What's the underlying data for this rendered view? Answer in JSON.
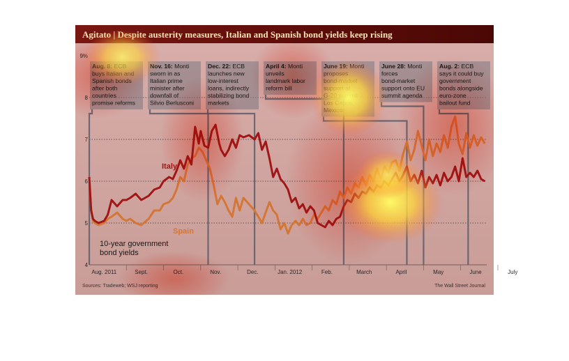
{
  "colors": {
    "italy": "#a11a1a",
    "spain": "#d4873d",
    "event_line": "#5a6a7a",
    "title_band": "#5b0a0a"
  },
  "chart_data": {
    "type": "line",
    "title": "Agitato | Despite austerity measures, Italian and Spanish bond yields keep rising",
    "xlabel": "",
    "ylabel": "",
    "y_unit": "%",
    "ylim": [
      4,
      9
    ],
    "y_ticks": [
      "9%",
      "8",
      "7",
      "6",
      "5",
      "4"
    ],
    "x_tick_labels": [
      "Aug. 2011",
      "Sept.",
      "Oct.",
      "Nov.",
      "Dec.",
      "Jan. 2012",
      "Feb.",
      "March",
      "April",
      "May",
      "June",
      "July"
    ],
    "grid": true,
    "legend_text": "10-year government bond yields",
    "source": "Sources: Tradeweb; WSJ reporting",
    "credit": "The Wall Street Journal",
    "series": [
      {
        "name": "Italy",
        "color": "#a11a1a",
        "points": [
          [
            0.0,
            6.1
          ],
          [
            0.05,
            5.3
          ],
          [
            0.1,
            5.1
          ],
          [
            0.15,
            5.05
          ],
          [
            0.25,
            5.0
          ],
          [
            0.4,
            5.05
          ],
          [
            0.5,
            5.2
          ],
          [
            0.6,
            5.55
          ],
          [
            0.75,
            5.4
          ],
          [
            0.9,
            5.55
          ],
          [
            1.0,
            5.55
          ],
          [
            1.1,
            5.6
          ],
          [
            1.25,
            5.7
          ],
          [
            1.4,
            5.55
          ],
          [
            1.6,
            5.65
          ],
          [
            1.75,
            5.8
          ],
          [
            1.9,
            5.85
          ],
          [
            2.0,
            6.0
          ],
          [
            2.15,
            6.1
          ],
          [
            2.25,
            6.05
          ],
          [
            2.35,
            6.25
          ],
          [
            2.45,
            6.5
          ],
          [
            2.55,
            6.3
          ],
          [
            2.65,
            6.6
          ],
          [
            2.75,
            6.4
          ],
          [
            2.85,
            7.3
          ],
          [
            2.95,
            6.9
          ],
          [
            3.0,
            7.2
          ],
          [
            3.1,
            6.85
          ],
          [
            3.2,
            6.8
          ],
          [
            3.3,
            7.2
          ],
          [
            3.4,
            7.35
          ],
          [
            3.5,
            6.9
          ],
          [
            3.55,
            6.75
          ],
          [
            3.65,
            6.6
          ],
          [
            3.75,
            6.75
          ],
          [
            3.85,
            7.0
          ],
          [
            3.95,
            6.8
          ],
          [
            4.05,
            7.1
          ],
          [
            4.15,
            7.05
          ],
          [
            4.3,
            7.1
          ],
          [
            4.45,
            7.0
          ],
          [
            4.55,
            7.15
          ],
          [
            4.65,
            6.75
          ],
          [
            4.75,
            6.95
          ],
          [
            4.85,
            6.55
          ],
          [
            4.95,
            6.1
          ],
          [
            5.05,
            6.3
          ],
          [
            5.15,
            6.05
          ],
          [
            5.25,
            5.95
          ],
          [
            5.35,
            5.8
          ],
          [
            5.45,
            5.5
          ],
          [
            5.55,
            5.6
          ],
          [
            5.65,
            5.35
          ],
          [
            5.75,
            5.45
          ],
          [
            5.85,
            5.25
          ],
          [
            5.95,
            5.4
          ],
          [
            6.05,
            5.3
          ],
          [
            6.15,
            5.0
          ],
          [
            6.25,
            4.95
          ],
          [
            6.35,
            4.9
          ],
          [
            6.45,
            5.05
          ],
          [
            6.55,
            4.95
          ],
          [
            6.65,
            5.1
          ],
          [
            6.75,
            5.15
          ],
          [
            6.85,
            5.4
          ],
          [
            6.95,
            5.55
          ],
          [
            7.05,
            5.5
          ],
          [
            7.15,
            5.7
          ],
          [
            7.25,
            5.6
          ],
          [
            7.35,
            5.75
          ],
          [
            7.45,
            5.7
          ],
          [
            7.55,
            5.85
          ],
          [
            7.65,
            5.75
          ],
          [
            7.75,
            5.9
          ],
          [
            7.85,
            5.85
          ],
          [
            7.95,
            6.0
          ],
          [
            8.05,
            5.9
          ],
          [
            8.15,
            6.05
          ],
          [
            8.25,
            6.2
          ],
          [
            8.35,
            6.0
          ],
          [
            8.45,
            6.15
          ],
          [
            8.55,
            6.35
          ],
          [
            8.65,
            6.0
          ],
          [
            8.75,
            6.15
          ],
          [
            8.85,
            5.95
          ],
          [
            8.95,
            6.25
          ],
          [
            9.05,
            5.85
          ],
          [
            9.15,
            6.1
          ],
          [
            9.25,
            5.95
          ],
          [
            9.35,
            6.15
          ],
          [
            9.45,
            5.9
          ],
          [
            9.55,
            6.2
          ],
          [
            9.65,
            6.0
          ],
          [
            9.75,
            6.1
          ],
          [
            9.85,
            6.35
          ],
          [
            9.95,
            6.0
          ],
          [
            10.05,
            6.55
          ],
          [
            10.15,
            6.1
          ],
          [
            10.25,
            6.2
          ],
          [
            10.35,
            6.1
          ],
          [
            10.45,
            6.25
          ],
          [
            10.55,
            6.05
          ],
          [
            10.65,
            6.0
          ]
        ]
      },
      {
        "name": "Spain",
        "color": "#d4873d",
        "points": [
          [
            0.0,
            6.1
          ],
          [
            0.05,
            5.35
          ],
          [
            0.1,
            5.05
          ],
          [
            0.15,
            5.0
          ],
          [
            0.25,
            4.95
          ],
          [
            0.4,
            5.0
          ],
          [
            0.5,
            5.1
          ],
          [
            0.6,
            5.15
          ],
          [
            0.75,
            5.25
          ],
          [
            0.9,
            5.1
          ],
          [
            1.0,
            5.05
          ],
          [
            1.1,
            5.1
          ],
          [
            1.25,
            5.0
          ],
          [
            1.4,
            4.95
          ],
          [
            1.6,
            5.1
          ],
          [
            1.75,
            5.3
          ],
          [
            1.9,
            5.3
          ],
          [
            2.0,
            5.45
          ],
          [
            2.15,
            5.5
          ],
          [
            2.25,
            5.6
          ],
          [
            2.35,
            5.8
          ],
          [
            2.45,
            6.1
          ],
          [
            2.55,
            6.0
          ],
          [
            2.65,
            6.4
          ],
          [
            2.75,
            6.55
          ],
          [
            2.85,
            6.6
          ],
          [
            2.95,
            6.8
          ],
          [
            3.05,
            6.7
          ],
          [
            3.15,
            6.5
          ],
          [
            3.25,
            6.3
          ],
          [
            3.35,
            5.9
          ],
          [
            3.45,
            5.45
          ],
          [
            3.55,
            5.65
          ],
          [
            3.65,
            5.5
          ],
          [
            3.75,
            5.3
          ],
          [
            3.85,
            5.15
          ],
          [
            3.95,
            5.6
          ],
          [
            4.05,
            5.3
          ],
          [
            4.15,
            5.6
          ],
          [
            4.3,
            5.45
          ],
          [
            4.45,
            5.3
          ],
          [
            4.55,
            5.15
          ],
          [
            4.65,
            5.0
          ],
          [
            4.75,
            5.25
          ],
          [
            4.85,
            5.5
          ],
          [
            4.95,
            5.3
          ],
          [
            5.05,
            5.2
          ],
          [
            5.15,
            4.85
          ],
          [
            5.25,
            5.0
          ],
          [
            5.35,
            4.75
          ],
          [
            5.45,
            4.95
          ],
          [
            5.55,
            5.05
          ],
          [
            5.65,
            4.95
          ],
          [
            5.75,
            5.1
          ],
          [
            5.85,
            4.95
          ],
          [
            5.95,
            5.0
          ],
          [
            6.05,
            5.2
          ],
          [
            6.15,
            5.1
          ],
          [
            6.25,
            5.25
          ],
          [
            6.35,
            5.4
          ],
          [
            6.45,
            5.3
          ],
          [
            6.55,
            5.55
          ],
          [
            6.65,
            5.45
          ],
          [
            6.75,
            5.75
          ],
          [
            6.85,
            5.6
          ],
          [
            6.95,
            5.85
          ],
          [
            7.05,
            5.7
          ],
          [
            7.15,
            5.95
          ],
          [
            7.25,
            5.85
          ],
          [
            7.35,
            6.1
          ],
          [
            7.45,
            5.9
          ],
          [
            7.55,
            6.15
          ],
          [
            7.65,
            6.0
          ],
          [
            7.75,
            6.3
          ],
          [
            7.85,
            6.05
          ],
          [
            7.95,
            6.35
          ],
          [
            8.05,
            6.2
          ],
          [
            8.15,
            6.45
          ],
          [
            8.25,
            6.5
          ],
          [
            8.35,
            6.25
          ],
          [
            8.45,
            6.65
          ],
          [
            8.55,
            6.95
          ],
          [
            8.65,
            6.5
          ],
          [
            8.75,
            6.75
          ],
          [
            8.85,
            7.2
          ],
          [
            8.95,
            6.85
          ],
          [
            9.05,
            6.5
          ],
          [
            9.15,
            7.0
          ],
          [
            9.25,
            6.6
          ],
          [
            9.35,
            6.9
          ],
          [
            9.45,
            6.7
          ],
          [
            9.55,
            7.1
          ],
          [
            9.65,
            6.8
          ],
          [
            9.75,
            7.3
          ],
          [
            9.85,
            7.55
          ],
          [
            9.95,
            6.9
          ],
          [
            10.05,
            6.65
          ],
          [
            10.15,
            7.15
          ],
          [
            10.25,
            6.8
          ],
          [
            10.35,
            7.1
          ],
          [
            10.45,
            6.85
          ],
          [
            10.55,
            7.05
          ],
          [
            10.65,
            6.9
          ]
        ]
      }
    ],
    "annotations": [
      {
        "date_label": "Aug. 8:",
        "x": 0.0,
        "lines": [
          "Aug. 8: ECB",
          "buys Italian and",
          "Spanish bonds",
          "after both",
          "countries",
          "promise reforms"
        ]
      },
      {
        "date_label": "Nov. 16:",
        "x": 3.2,
        "lines": [
          "Nov. 16: Monti",
          "sworn in as",
          "Italian prime",
          "minister after",
          "downfall of",
          "Silvio Berlusconi"
        ]
      },
      {
        "date_label": "Dec. 22:",
        "x": 4.45,
        "lines": [
          "Dec. 22: ECB",
          "launches new",
          "low-interest",
          "loans, indirectly",
          "stabilizing bond",
          "markets"
        ]
      },
      {
        "date_label": "April 4:",
        "x": 6.85,
        "lines": [
          "April 4: Monti",
          "unveils",
          "landmark labor",
          "reform bill"
        ]
      },
      {
        "date_label": "June 19:",
        "x": 8.55,
        "lines": [
          "June 19: Monti",
          "proposes",
          "bond-market",
          "support at",
          "G-20 summit",
          "Los Cabos,",
          "Mexico"
        ]
      },
      {
        "date_label": "June 28:",
        "x": 9.0,
        "lines": [
          "June 28: Monti",
          "forces",
          "bond-market",
          "support onto EU",
          "summit agenda"
        ]
      },
      {
        "date_label": "Aug. 2:",
        "x": 10.2,
        "lines": [
          "Aug. 2: ECB",
          "says it could buy",
          "government",
          "bonds alongside",
          "euro-zone",
          "bailout fund"
        ]
      }
    ]
  }
}
